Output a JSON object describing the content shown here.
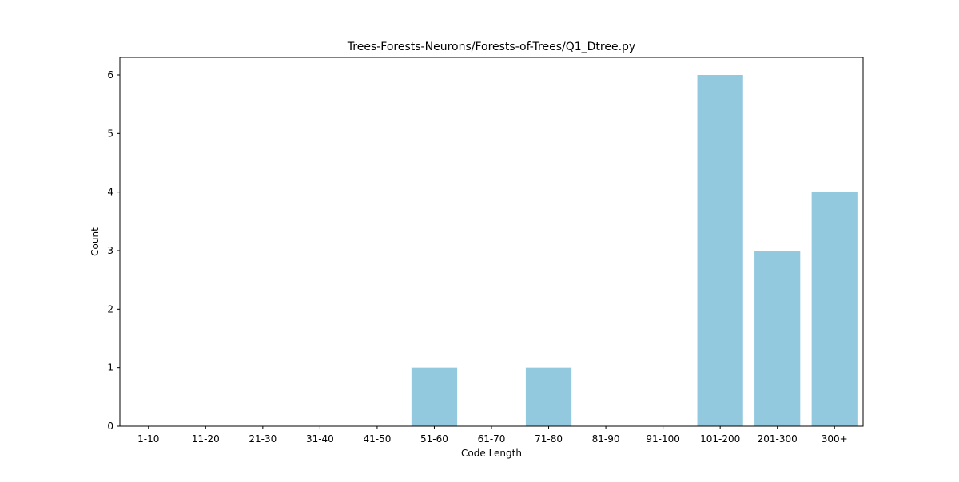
{
  "chart_data": {
    "type": "bar",
    "title": "Trees-Forests-Neurons/Forests-of-Trees/Q1_Dtree.py",
    "xlabel": "Code Length",
    "ylabel": "Count",
    "categories": [
      "1-10",
      "11-20",
      "21-30",
      "31-40",
      "41-50",
      "51-60",
      "61-70",
      "71-80",
      "81-90",
      "91-100",
      "101-200",
      "201-300",
      "300+"
    ],
    "values": [
      0,
      0,
      0,
      0,
      0,
      1,
      0,
      1,
      0,
      0,
      6,
      3,
      4
    ],
    "ylim": [
      0,
      6.3
    ],
    "yticks": [
      "0",
      "1",
      "2",
      "3",
      "4",
      "5",
      "6"
    ],
    "bar_color": "#92c9df",
    "grid": false,
    "legend": "none"
  }
}
